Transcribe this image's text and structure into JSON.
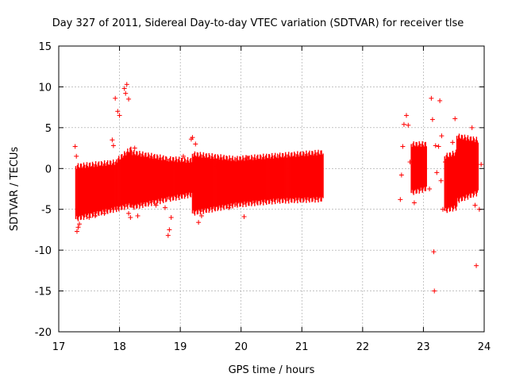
{
  "chart_data": {
    "type": "scatter",
    "title": "Day 327 of 2011, Sidereal Day-to-day VTEC variation (SDTVAR) for receiver tlse",
    "xlabel": "GPS time / hours",
    "ylabel": "SDTVAR / TECUs",
    "xlim": [
      17,
      24
    ],
    "ylim": [
      -20,
      15
    ],
    "xticks": [
      "17",
      "18",
      "19",
      "20",
      "21",
      "22",
      "23",
      "24"
    ],
    "yticks": [
      "15",
      "10",
      "5",
      "0",
      "-5",
      "-10",
      "-15",
      "-20"
    ],
    "grid": true,
    "marker": "+",
    "color": "#ff0000",
    "bands": [
      {
        "x": [
          17.28,
          17.95
        ],
        "lo": [
          -6.2,
          -5.0
        ],
        "hi": [
          0.3,
          0.8
        ]
      },
      {
        "x": [
          17.95,
          18.2
        ],
        "lo": [
          -5.0,
          -4.5
        ],
        "hi": [
          1.0,
          2.5
        ]
      },
      {
        "x": [
          18.2,
          18.8
        ],
        "lo": [
          -4.8,
          -3.8
        ],
        "hi": [
          2.0,
          1.2
        ]
      },
      {
        "x": [
          18.8,
          19.2
        ],
        "lo": [
          -3.8,
          -3.2
        ],
        "hi": [
          1.2,
          1.0
        ]
      },
      {
        "x": [
          19.2,
          19.9
        ],
        "lo": [
          -5.5,
          -4.5
        ],
        "hi": [
          1.8,
          1.2
        ]
      },
      {
        "x": [
          19.9,
          20.6
        ],
        "lo": [
          -4.5,
          -4.0
        ],
        "hi": [
          1.2,
          1.6
        ]
      },
      {
        "x": [
          20.6,
          21.35
        ],
        "lo": [
          -4.0,
          -3.8
        ],
        "hi": [
          1.6,
          2.0
        ]
      },
      {
        "x": [
          22.8,
          23.05
        ],
        "lo": [
          -3.0,
          -2.5
        ],
        "hi": [
          3.0,
          3.0
        ]
      },
      {
        "x": [
          23.35,
          23.55
        ],
        "lo": [
          -5.2,
          -4.8
        ],
        "hi": [
          1.5,
          2.0
        ]
      },
      {
        "x": [
          23.55,
          23.9
        ],
        "lo": [
          -4.0,
          -3.0
        ],
        "hi": [
          4.0,
          3.5
        ]
      }
    ],
    "points": [
      [
        17.27,
        2.7
      ],
      [
        17.29,
        1.5
      ],
      [
        17.3,
        -7.7
      ],
      [
        17.32,
        -7.2
      ],
      [
        17.34,
        -6.8
      ],
      [
        17.5,
        -6.0
      ],
      [
        17.6,
        -5.8
      ],
      [
        17.75,
        -5.5
      ],
      [
        17.85,
        -5.0
      ],
      [
        17.88,
        3.5
      ],
      [
        17.9,
        2.8
      ],
      [
        17.93,
        8.6
      ],
      [
        17.97,
        7.0
      ],
      [
        18.0,
        6.5
      ],
      [
        18.08,
        9.8
      ],
      [
        18.1,
        9.2
      ],
      [
        18.12,
        10.3
      ],
      [
        18.15,
        8.5
      ],
      [
        18.15,
        -5.5
      ],
      [
        18.18,
        -6.0
      ],
      [
        18.25,
        2.5
      ],
      [
        18.3,
        -5.8
      ],
      [
        18.6,
        -4.5
      ],
      [
        18.75,
        -4.8
      ],
      [
        18.8,
        -8.2
      ],
      [
        18.82,
        -7.5
      ],
      [
        18.85,
        -6.0
      ],
      [
        19.05,
        1.5
      ],
      [
        19.18,
        3.6
      ],
      [
        19.2,
        3.8
      ],
      [
        19.25,
        3.0
      ],
      [
        19.3,
        -6.6
      ],
      [
        19.35,
        -5.8
      ],
      [
        19.45,
        0.5
      ],
      [
        19.6,
        0.2
      ],
      [
        19.8,
        -4.8
      ],
      [
        20.05,
        -5.9
      ],
      [
        20.1,
        1.3
      ],
      [
        22.62,
        -3.8
      ],
      [
        22.64,
        -0.8
      ],
      [
        22.66,
        2.7
      ],
      [
        22.68,
        5.4
      ],
      [
        22.72,
        6.5
      ],
      [
        22.75,
        5.3
      ],
      [
        22.78,
        0.8
      ],
      [
        22.85,
        -4.2
      ],
      [
        23.1,
        -2.5
      ],
      [
        23.13,
        8.6
      ],
      [
        23.15,
        6.0
      ],
      [
        23.17,
        -10.2
      ],
      [
        23.18,
        -15.0
      ],
      [
        23.2,
        2.8
      ],
      [
        23.22,
        -0.5
      ],
      [
        23.25,
        2.7
      ],
      [
        23.27,
        8.3
      ],
      [
        23.29,
        -1.5
      ],
      [
        23.3,
        4.0
      ],
      [
        23.32,
        -5.0
      ],
      [
        23.36,
        0.8
      ],
      [
        23.48,
        3.2
      ],
      [
        23.52,
        6.1
      ],
      [
        23.8,
        5.0
      ],
      [
        23.85,
        -4.5
      ],
      [
        23.87,
        -11.9
      ],
      [
        23.92,
        -5.0
      ],
      [
        23.95,
        0.5
      ]
    ]
  }
}
